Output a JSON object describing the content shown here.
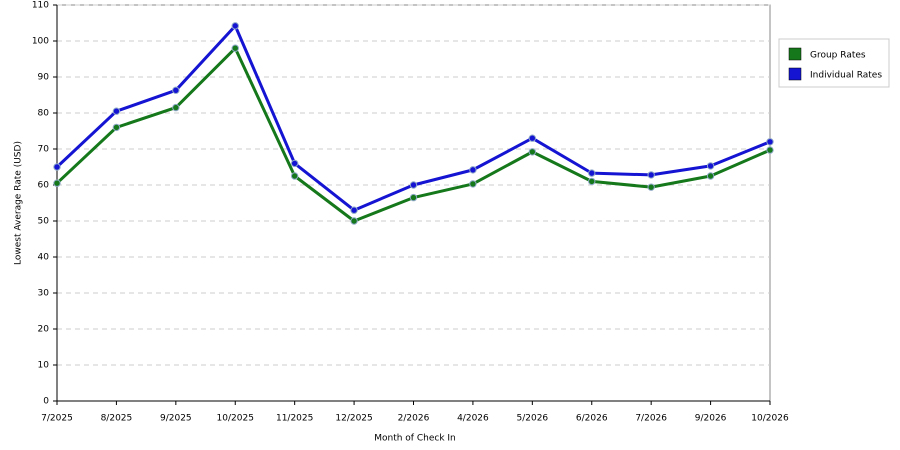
{
  "chart_data": {
    "type": "line",
    "x_label": "Month of Check In",
    "y_label": "Lowest Average Rate (USD)",
    "categories": [
      "7/2025",
      "8/2025",
      "9/2025",
      "10/2025",
      "11/2025",
      "12/2025",
      "2/2026",
      "4/2026",
      "5/2026",
      "6/2026",
      "7/2026",
      "9/2026",
      "10/2026"
    ],
    "series": [
      {
        "name": "Group Rates",
        "color": "#15781a",
        "values": [
          60.5,
          76,
          81.5,
          98,
          62.5,
          50,
          56.5,
          60.3,
          69.2,
          61,
          59.4,
          62.5,
          69.7
        ]
      },
      {
        "name": "Individual Rates",
        "color": "#1414d2",
        "values": [
          65,
          80.5,
          86.3,
          104.2,
          66,
          53,
          60,
          64.2,
          73,
          63.3,
          62.8,
          65.3,
          72
        ]
      }
    ],
    "ylim": [
      0,
      110
    ],
    "yticks": [
      0,
      10,
      20,
      30,
      40,
      50,
      60,
      70,
      80,
      90,
      100,
      110
    ],
    "grid": true,
    "legend": "right"
  }
}
